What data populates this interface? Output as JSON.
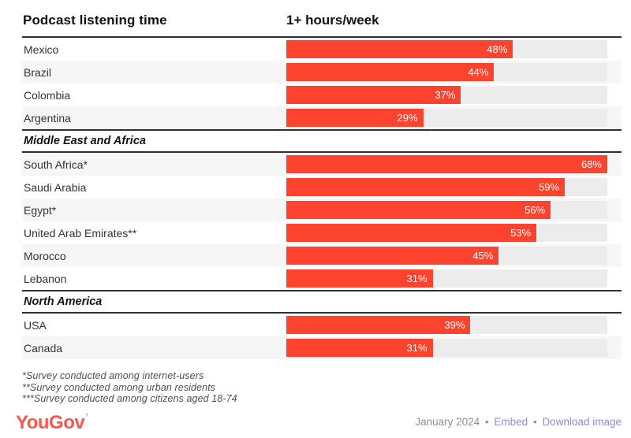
{
  "title": "Podcast listening time",
  "column_header": "1+ hours/week",
  "scale_max": 68,
  "sections": [
    {
      "title": "",
      "rows": [
        {
          "label": "Mexico",
          "value": 48,
          "value_text": "48%"
        },
        {
          "label": "Brazil",
          "value": 44,
          "value_text": "44%"
        },
        {
          "label": "Colombia",
          "value": 37,
          "value_text": "37%"
        },
        {
          "label": "Argentina",
          "value": 29,
          "value_text": "29%"
        }
      ]
    },
    {
      "title": "Middle East and Africa",
      "rows": [
        {
          "label": "South Africa*",
          "value": 68,
          "value_text": "68%"
        },
        {
          "label": "Saudi Arabia",
          "value": 59,
          "value_text": "59%"
        },
        {
          "label": "Egypt*",
          "value": 56,
          "value_text": "56%"
        },
        {
          "label": "United Arab Emirates**",
          "value": 53,
          "value_text": "53%"
        },
        {
          "label": "Morocco",
          "value": 45,
          "value_text": "45%"
        },
        {
          "label": "Lebanon",
          "value": 31,
          "value_text": "31%"
        }
      ]
    },
    {
      "title": "North America",
      "rows": [
        {
          "label": "USA",
          "value": 39,
          "value_text": "39%"
        },
        {
          "label": "Canada",
          "value": 31,
          "value_text": "31%"
        }
      ]
    }
  ],
  "footnotes": [
    "*Survey conducted among internet-users",
    "**Survey conducted among urban residents",
    "***Survey conducted among citizens aged 18-74"
  ],
  "footer": {
    "logo_text": "YouGov",
    "logo_mark": "’",
    "date": "January 2024",
    "separator": "•",
    "links": [
      {
        "label": "Embed"
      },
      {
        "label": "Download image"
      }
    ]
  },
  "colors": {
    "bar": "#fc432d",
    "track": "#ececec",
    "row_alt": "#f6f6f6",
    "rule": "#2f2f2f",
    "logo": "#f8574e",
    "link": "#8b8be4",
    "date": "#8f8f8f"
  },
  "chart_data": {
    "type": "bar",
    "orientation": "horizontal",
    "title": "Podcast listening time",
    "value_axis_label": "1+ hours/week",
    "unit": "%",
    "xlim": [
      0,
      68
    ],
    "grid": false,
    "legend": false,
    "groups": [
      {
        "region": "",
        "categories": [
          "Mexico",
          "Brazil",
          "Colombia",
          "Argentina"
        ],
        "values": [
          48,
          44,
          37,
          29
        ]
      },
      {
        "region": "Middle East and Africa",
        "categories": [
          "South Africa*",
          "Saudi Arabia",
          "Egypt*",
          "United Arab Emirates**",
          "Morocco",
          "Lebanon"
        ],
        "values": [
          68,
          59,
          56,
          53,
          45,
          31
        ]
      },
      {
        "region": "North America",
        "categories": [
          "USA",
          "Canada"
        ],
        "values": [
          39,
          31
        ]
      }
    ]
  }
}
